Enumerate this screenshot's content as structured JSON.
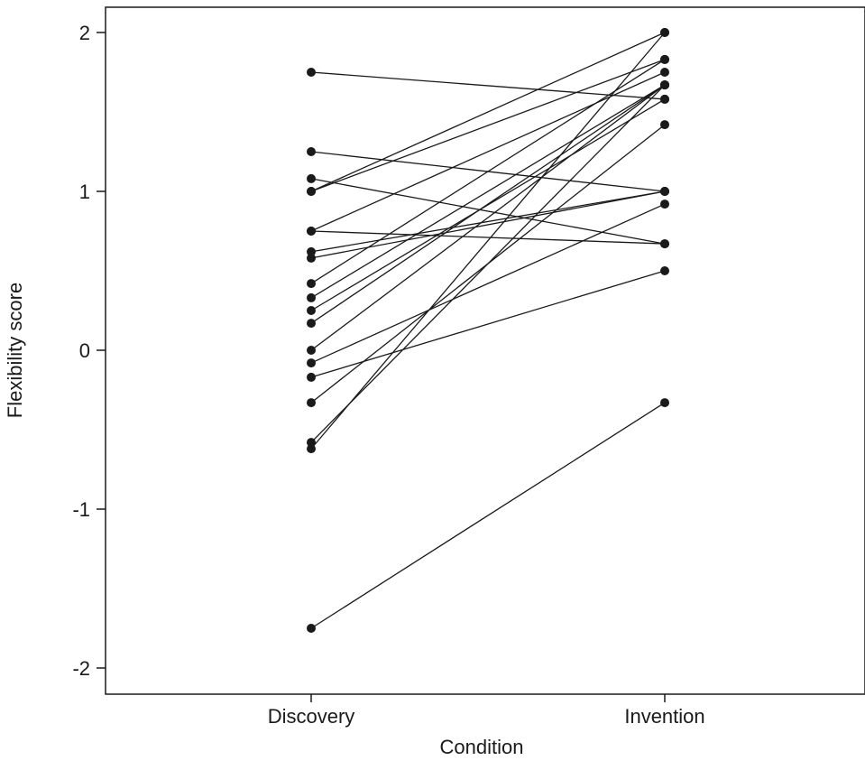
{
  "chart_data": {
    "type": "line",
    "title": "",
    "xlabel": "Condition",
    "ylabel": "Flexibility score",
    "categories": [
      "Discovery",
      "Invention"
    ],
    "ylim": [
      -2.18,
      2.18
    ],
    "yticks": [
      -2,
      -1,
      0,
      1,
      2
    ],
    "ytick_labels": [
      "-2",
      "-1",
      "0",
      "1",
      "2"
    ],
    "grid": false,
    "legend": "none",
    "colors": {
      "line": "#1a1a1a",
      "marker": "#1a1a1a",
      "frame": "#1a1a1a"
    },
    "series": [
      {
        "values": [
          1.75,
          1.58
        ]
      },
      {
        "values": [
          1.25,
          1.0
        ]
      },
      {
        "values": [
          1.08,
          0.67
        ]
      },
      {
        "values": [
          1.0,
          2.0
        ]
      },
      {
        "values": [
          1.0,
          1.83
        ]
      },
      {
        "values": [
          0.75,
          1.75
        ]
      },
      {
        "values": [
          0.75,
          0.67
        ]
      },
      {
        "values": [
          0.62,
          1.0
        ]
      },
      {
        "values": [
          0.58,
          1.0
        ]
      },
      {
        "values": [
          0.42,
          1.83
        ]
      },
      {
        "values": [
          0.33,
          1.67
        ]
      },
      {
        "values": [
          0.25,
          1.58
        ]
      },
      {
        "values": [
          0.17,
          1.67
        ]
      },
      {
        "values": [
          0.0,
          1.67
        ]
      },
      {
        "values": [
          -0.08,
          0.92
        ]
      },
      {
        "values": [
          -0.17,
          0.5
        ]
      },
      {
        "values": [
          -0.33,
          1.42
        ]
      },
      {
        "values": [
          -0.58,
          1.67
        ]
      },
      {
        "values": [
          -0.62,
          2.0
        ]
      },
      {
        "values": [
          -1.75,
          -0.33
        ]
      }
    ]
  }
}
